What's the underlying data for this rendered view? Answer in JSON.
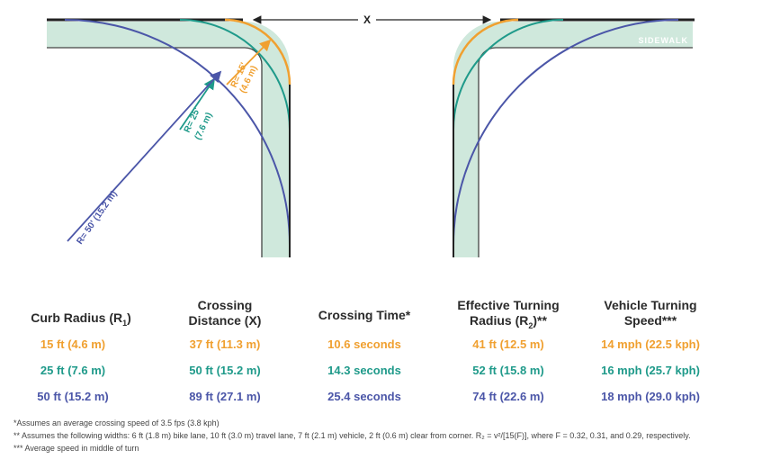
{
  "diagram": {
    "x_label": "X",
    "sidewalk_label": "SIDEWALK",
    "r15_label": "R= 15'",
    "r15_metric": "(4.6 m)",
    "r25_label": "R= 25'",
    "r25_metric": "(7.6 m)",
    "r50_label": "R= 50' (15.2 m)"
  },
  "colors": {
    "r15": "#f0a030",
    "r25": "#1f9a8a",
    "r50": "#4b56a8",
    "sidewalk": "#cfe8dc",
    "curb": "#222222"
  },
  "table": {
    "headers": {
      "curb_radius": "Curb Radius (R",
      "curb_radius_sub": "1",
      "curb_radius_end": ")",
      "crossing_distance_1": "Crossing",
      "crossing_distance_2": "Distance (X)",
      "crossing_time": "Crossing Time*",
      "effective_1": "Effective Turning",
      "effective_2": "Radius (R",
      "effective_sub": "2",
      "effective_end": ")**",
      "speed_1": "Vehicle Turning",
      "speed_2": "Speed***"
    },
    "rows": [
      {
        "curb": "15 ft (4.6 m)",
        "distance": "37 ft (11.3 m)",
        "time": "10.6 seconds",
        "effective": "41 ft (12.5 m)",
        "speed": "14 mph (22.5 kph)"
      },
      {
        "curb": "25 ft (7.6 m)",
        "distance": "50 ft (15.2 m)",
        "time": "14.3 seconds",
        "effective": "52 ft (15.8 m)",
        "speed": "16 mph (25.7 kph)"
      },
      {
        "curb": "50 ft (15.2 m)",
        "distance": "89 ft (27.1 m)",
        "time": "25.4 seconds",
        "effective": "74 ft (22.6 m)",
        "speed": "18 mph (29.0 kph)"
      }
    ]
  },
  "notes": {
    "n1": "*Assumes an average crossing speed of 3.5 fps (3.8 kph)",
    "n2": "** Assumes the following widths: 6 ft (1.8 m) bike lane,  10 ft (3.0 m) travel lane, 7 ft (2.1 m) vehicle, 2 ft (0.6 m) clear from corner. R₂ = v²/[15(F)], where F = 0.32, 0.31, and 0.29, respectively.",
    "n3": "*** Average speed in middle of turn"
  }
}
